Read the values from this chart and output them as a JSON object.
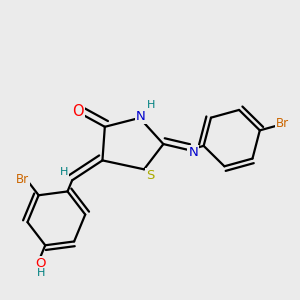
{
  "bg_color": "#ebebeb",
  "atom_colors": {
    "C": "#000000",
    "N": "#0000cc",
    "O": "#ff0000",
    "S": "#aaaa00",
    "Br": "#cc6600",
    "H": "#008080"
  },
  "bond_color": "#000000",
  "figsize": [
    3.0,
    3.0
  ],
  "dpi": 100
}
